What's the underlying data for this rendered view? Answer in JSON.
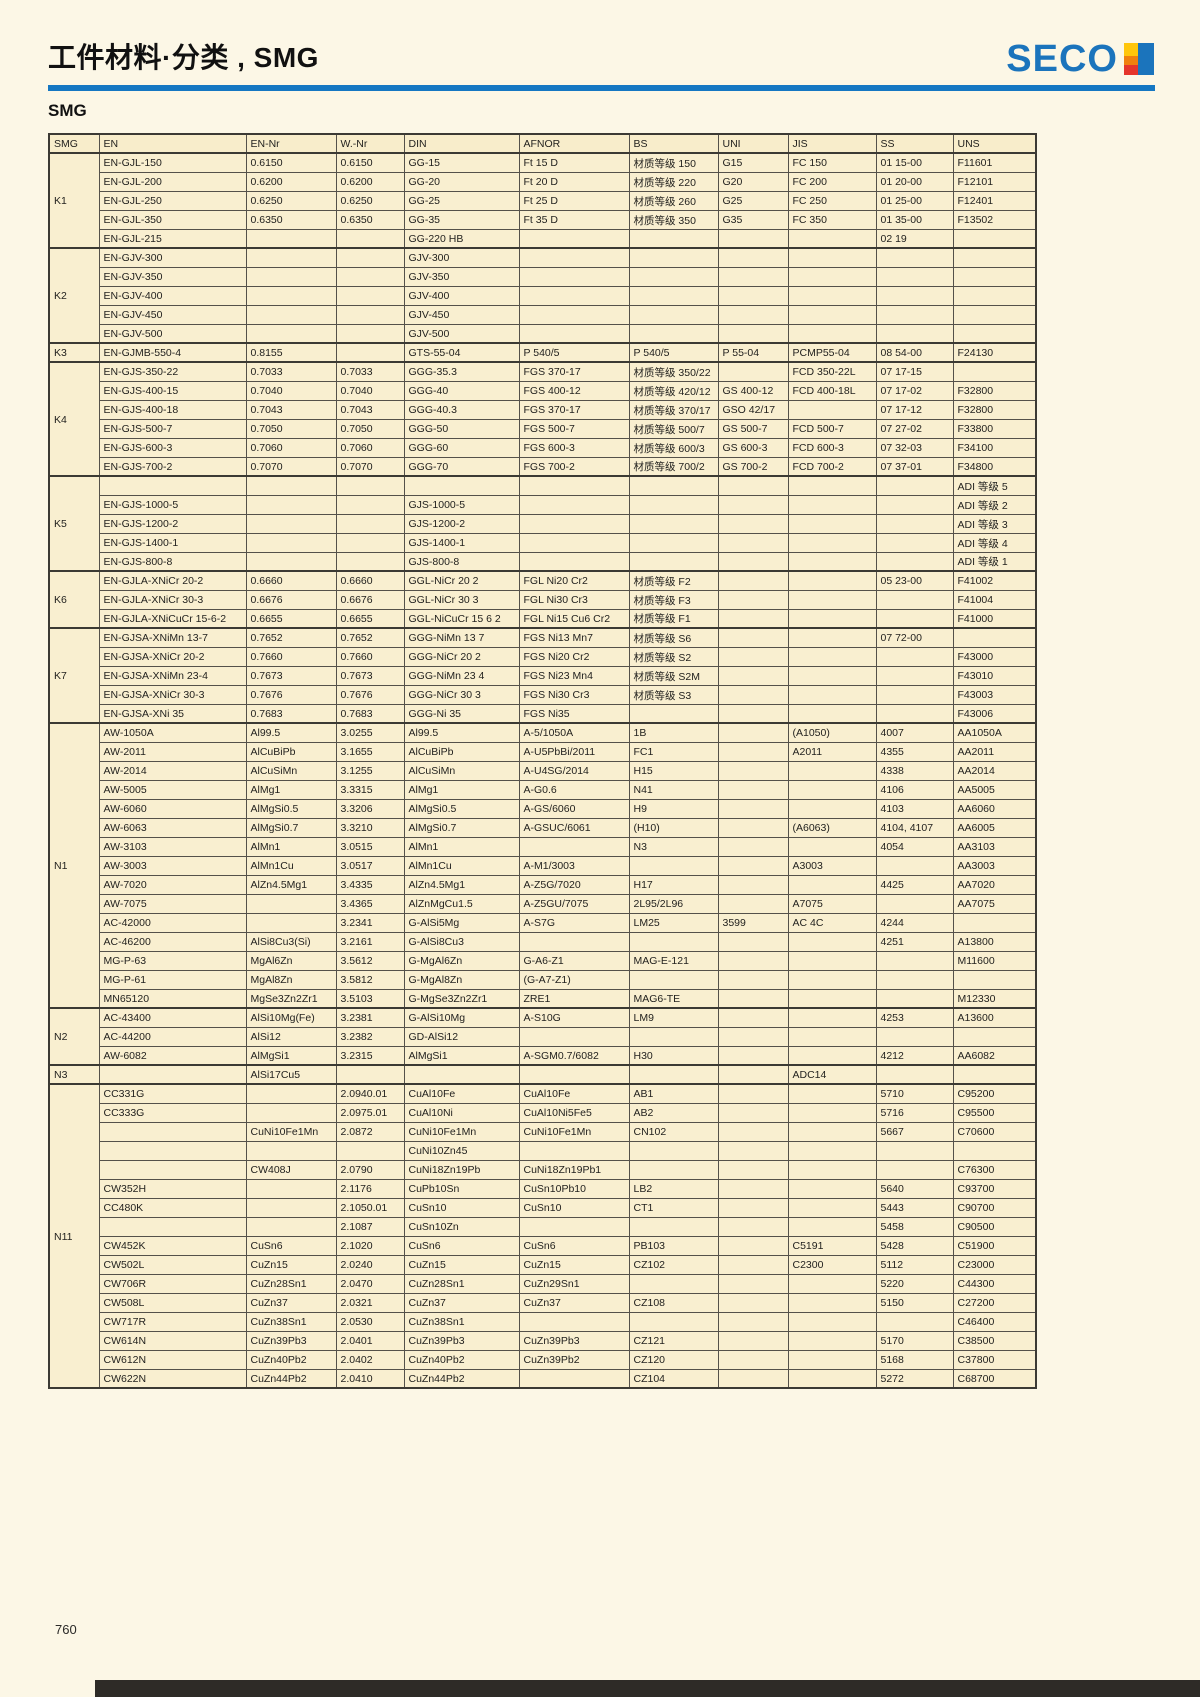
{
  "page": {
    "title": "工件材料·分类 , SMG",
    "logo_text": "SECO",
    "section_label": "SMG",
    "page_number": "760"
  },
  "colors": {
    "accent_blue": "#1577c2",
    "logo_blue": "#1b74bc",
    "group_orange": "#ee7c4e",
    "group_green": "#d8e7d6",
    "cell_cream": "#f9efd0"
  },
  "table": {
    "columns": [
      "SMG",
      "EN",
      "EN-Nr",
      "W.-Nr",
      "DIN",
      "AFNOR",
      "BS",
      "UNI",
      "JIS",
      "SS",
      "UNS"
    ],
    "groups": [
      {
        "label": "K1",
        "type": "k",
        "rows": [
          [
            "EN-GJL-150",
            "0.6150",
            "0.6150",
            "GG-15",
            "Ft 15 D",
            "材质等级 150",
            "G15",
            "FC 150",
            "01 15-00",
            "F11601"
          ],
          [
            "EN-GJL-200",
            "0.6200",
            "0.6200",
            "GG-20",
            "Ft 20 D",
            "材质等级 220",
            "G20",
            "FC 200",
            "01 20-00",
            "F12101"
          ],
          [
            "EN-GJL-250",
            "0.6250",
            "0.6250",
            "GG-25",
            "Ft 25 D",
            "材质等级 260",
            "G25",
            "FC 250",
            "01 25-00",
            "F12401"
          ],
          [
            "EN-GJL-350",
            "0.6350",
            "0.6350",
            "GG-35",
            "Ft 35 D",
            "材质等级 350",
            "G35",
            "FC 350",
            "01 35-00",
            "F13502"
          ],
          [
            "EN-GJL-215",
            "",
            "",
            "GG-220 HB",
            "",
            "",
            "",
            "",
            "02 19",
            ""
          ]
        ]
      },
      {
        "label": "K2",
        "type": "k",
        "rows": [
          [
            "EN-GJV-300",
            "",
            "",
            "GJV-300",
            "",
            "",
            "",
            "",
            "",
            ""
          ],
          [
            "EN-GJV-350",
            "",
            "",
            "GJV-350",
            "",
            "",
            "",
            "",
            "",
            ""
          ],
          [
            "EN-GJV-400",
            "",
            "",
            "GJV-400",
            "",
            "",
            "",
            "",
            "",
            ""
          ],
          [
            "EN-GJV-450",
            "",
            "",
            "GJV-450",
            "",
            "",
            "",
            "",
            "",
            ""
          ],
          [
            "EN-GJV-500",
            "",
            "",
            "GJV-500",
            "",
            "",
            "",
            "",
            "",
            ""
          ]
        ]
      },
      {
        "label": "K3",
        "type": "k",
        "rows": [
          [
            "EN-GJMB-550-4",
            "0.8155",
            "",
            "GTS-55-04",
            "P 540/5",
            "P 540/5",
            "P 55-04",
            "PCMP55-04",
            "08 54-00",
            "F24130"
          ]
        ]
      },
      {
        "label": "K4",
        "type": "k",
        "rows": [
          [
            "EN-GJS-350-22",
            "0.7033",
            "0.7033",
            "GGG-35.3",
            "FGS 370-17",
            "材质等级 350/22",
            "",
            "FCD 350-22L",
            "07 17-15",
            ""
          ],
          [
            "EN-GJS-400-15",
            "0.7040",
            "0.7040",
            "GGG-40",
            "FGS 400-12",
            "材质等级 420/12",
            "GS 400-12",
            "FCD 400-18L",
            "07 17-02",
            "F32800"
          ],
          [
            "EN-GJS-400-18",
            "0.7043",
            "0.7043",
            "GGG-40.3",
            "FGS 370-17",
            "材质等级 370/17",
            "GSO 42/17",
            "",
            "07 17-12",
            "F32800"
          ],
          [
            "EN-GJS-500-7",
            "0.7050",
            "0.7050",
            "GGG-50",
            "FGS 500-7",
            "材质等级 500/7",
            "GS 500-7",
            "FCD 500-7",
            "07 27-02",
            "F33800"
          ],
          [
            "EN-GJS-600-3",
            "0.7060",
            "0.7060",
            "GGG-60",
            "FGS 600-3",
            "材质等级 600/3",
            "GS 600-3",
            "FCD 600-3",
            "07 32-03",
            "F34100"
          ],
          [
            "EN-GJS-700-2",
            "0.7070",
            "0.7070",
            "GGG-70",
            "FGS 700-2",
            "材质等级 700/2",
            "GS 700-2",
            "FCD 700-2",
            "07 37-01",
            "F34800"
          ]
        ]
      },
      {
        "label": "K5",
        "type": "k",
        "rows": [
          [
            "",
            "",
            "",
            "",
            "",
            "",
            "",
            "",
            "",
            "ADI 等级 5"
          ],
          [
            "EN-GJS-1000-5",
            "",
            "",
            "GJS-1000-5",
            "",
            "",
            "",
            "",
            "",
            "ADI 等级 2"
          ],
          [
            "EN-GJS-1200-2",
            "",
            "",
            "GJS-1200-2",
            "",
            "",
            "",
            "",
            "",
            "ADI 等级 3"
          ],
          [
            "EN-GJS-1400-1",
            "",
            "",
            "GJS-1400-1",
            "",
            "",
            "",
            "",
            "",
            "ADI 等级 4"
          ],
          [
            "EN-GJS-800-8",
            "",
            "",
            "GJS-800-8",
            "",
            "",
            "",
            "",
            "",
            "ADI 等级 1"
          ]
        ]
      },
      {
        "label": "K6",
        "type": "k",
        "rows": [
          [
            "EN-GJLA-XNiCr 20-2",
            "0.6660",
            "0.6660",
            "GGL-NiCr 20 2",
            "FGL Ni20 Cr2",
            "材质等级 F2",
            "",
            "",
            "05 23-00",
            "F41002"
          ],
          [
            "EN-GJLA-XNiCr 30-3",
            "0.6676",
            "0.6676",
            "GGL-NiCr 30 3",
            "FGL Ni30 Cr3",
            "材质等级 F3",
            "",
            "",
            "",
            "F41004"
          ],
          [
            "EN-GJLA-XNiCuCr 15-6-2",
            "0.6655",
            "0.6655",
            "GGL-NiCuCr 15 6 2",
            "FGL Ni15 Cu6 Cr2",
            "材质等级 F1",
            "",
            "",
            "",
            "F41000"
          ]
        ]
      },
      {
        "label": "K7",
        "type": "k",
        "rows": [
          [
            "EN-GJSA-XNiMn 13-7",
            "0.7652",
            "0.7652",
            "GGG-NiMn 13 7",
            "FGS Ni13 Mn7",
            "材质等级 S6",
            "",
            "",
            "07 72-00",
            ""
          ],
          [
            "EN-GJSA-XNiCr 20-2",
            "0.7660",
            "0.7660",
            "GGG-NiCr 20 2",
            "FGS Ni20 Cr2",
            "材质等级 S2",
            "",
            "",
            "",
            "F43000"
          ],
          [
            "EN-GJSA-XNiMn 23-4",
            "0.7673",
            "0.7673",
            "GGG-NiMn 23 4",
            "FGS Ni23 Mn4",
            "材质等级 S2M",
            "",
            "",
            "",
            "F43010"
          ],
          [
            "EN-GJSA-XNiCr 30-3",
            "0.7676",
            "0.7676",
            "GGG-NiCr 30 3",
            "FGS Ni30 Cr3",
            "材质等级 S3",
            "",
            "",
            "",
            "F43003"
          ],
          [
            "EN-GJSA-XNi 35",
            "0.7683",
            "0.7683",
            "GGG-Ni 35",
            "FGS Ni35",
            "",
            "",
            "",
            "",
            "F43006"
          ]
        ]
      },
      {
        "label": "N1",
        "type": "n",
        "rows": [
          [
            "AW-1050A",
            "Al99.5",
            "3.0255",
            "Al99.5",
            "A-5/1050A",
            "1B",
            "",
            "(A1050)",
            "4007",
            "AA1050A"
          ],
          [
            "AW-2011",
            "AlCuBiPb",
            "3.1655",
            "AlCuBiPb",
            "A-U5PbBi/2011",
            "FC1",
            "",
            "A2011",
            "4355",
            "AA2011"
          ],
          [
            "AW-2014",
            "AlCuSiMn",
            "3.1255",
            "AlCuSiMn",
            "A-U4SG/2014",
            "H15",
            "",
            "",
            "4338",
            "AA2014"
          ],
          [
            "AW-5005",
            "AlMg1",
            "3.3315",
            "AlMg1",
            "A-G0.6",
            "N41",
            "",
            "",
            "4106",
            "AA5005"
          ],
          [
            "AW-6060",
            "AlMgSi0.5",
            "3.3206",
            "AlMgSi0.5",
            "A-GS/6060",
            "H9",
            "",
            "",
            "4103",
            "AA6060"
          ],
          [
            "AW-6063",
            "AlMgSi0.7",
            "3.3210",
            "AlMgSi0.7",
            "A-GSUC/6061",
            "(H10)",
            "",
            "(A6063)",
            "4104, 4107",
            "AA6005"
          ],
          [
            "AW-3103",
            "AlMn1",
            "3.0515",
            "AlMn1",
            "",
            "N3",
            "",
            "",
            "4054",
            "AA3103"
          ],
          [
            "AW-3003",
            "AlMn1Cu",
            "3.0517",
            "AlMn1Cu",
            "A-M1/3003",
            "",
            "",
            "A3003",
            "",
            "AA3003"
          ],
          [
            "AW-7020",
            "AlZn4.5Mg1",
            "3.4335",
            "AlZn4.5Mg1",
            "A-Z5G/7020",
            "H17",
            "",
            "",
            "4425",
            "AA7020"
          ],
          [
            "AW-7075",
            "",
            "3.4365",
            "AlZnMgCu1.5",
            "A-Z5GU/7075",
            "2L95/2L96",
            "",
            "A7075",
            "",
            "AA7075"
          ],
          [
            "AC-42000",
            "",
            "3.2341",
            "G-AlSi5Mg",
            "A-S7G",
            "LM25",
            "3599",
            "AC 4C",
            "4244",
            ""
          ],
          [
            "AC-46200",
            "AlSi8Cu3(Si)",
            "3.2161",
            "G-AlSi8Cu3",
            "",
            "",
            "",
            "",
            "4251",
            "A13800"
          ],
          [
            "MG-P-63",
            "MgAl6Zn",
            "3.5612",
            "G-MgAl6Zn",
            "G-A6-Z1",
            "MAG-E-121",
            "",
            "",
            "",
            "M11600"
          ],
          [
            "MG-P-61",
            "MgAl8Zn",
            "3.5812",
            "G-MgAl8Zn",
            "(G-A7-Z1)",
            "",
            "",
            "",
            "",
            ""
          ],
          [
            "MN65120",
            "MgSe3Zn2Zr1",
            "3.5103",
            "G-MgSe3Zn2Zr1",
            "ZRE1",
            "MAG6-TE",
            "",
            "",
            "",
            "M12330"
          ]
        ]
      },
      {
        "label": "N2",
        "type": "n",
        "rows": [
          [
            "AC-43400",
            "AlSi10Mg(Fe)",
            "3.2381",
            "G-AlSi10Mg",
            "A-S10G",
            "LM9",
            "",
            "",
            "4253",
            "A13600"
          ],
          [
            "AC-44200",
            "AlSi12",
            "3.2382",
            "GD-AlSi12",
            "",
            "",
            "",
            "",
            "",
            ""
          ],
          [
            "AW-6082",
            "AlMgSi1",
            "3.2315",
            "AlMgSi1",
            "A-SGM0.7/6082",
            "H30",
            "",
            "",
            "4212",
            "AA6082"
          ]
        ]
      },
      {
        "label": "N3",
        "type": "n",
        "rows": [
          [
            "",
            "AlSi17Cu5",
            "",
            "",
            "",
            "",
            "",
            "ADC14",
            "",
            ""
          ]
        ]
      },
      {
        "label": "N11",
        "type": "n",
        "rows": [
          [
            "CC331G",
            "",
            "2.0940.01",
            "CuAl10Fe",
            "CuAl10Fe",
            "AB1",
            "",
            "",
            "5710",
            "C95200"
          ],
          [
            "CC333G",
            "",
            "2.0975.01",
            "CuAl10Ni",
            "CuAl10Ni5Fe5",
            "AB2",
            "",
            "",
            "5716",
            "C95500"
          ],
          [
            "",
            "CuNi10Fe1Mn",
            "2.0872",
            "CuNi10Fe1Mn",
            "CuNi10Fe1Mn",
            "CN102",
            "",
            "",
            "5667",
            "C70600"
          ],
          [
            "",
            "",
            "",
            "CuNi10Zn45",
            "",
            "",
            "",
            "",
            "",
            ""
          ],
          [
            "",
            "CW408J",
            "2.0790",
            "CuNi18Zn19Pb",
            "CuNi18Zn19Pb1",
            "",
            "",
            "",
            "",
            "C76300"
          ],
          [
            "CW352H",
            "",
            "2.1176",
            "CuPb10Sn",
            "CuSn10Pb10",
            "LB2",
            "",
            "",
            "5640",
            "C93700"
          ],
          [
            "CC480K",
            "",
            "2.1050.01",
            "CuSn10",
            "CuSn10",
            "CT1",
            "",
            "",
            "5443",
            "C90700"
          ],
          [
            "",
            "",
            "2.1087",
            "CuSn10Zn",
            "",
            "",
            "",
            "",
            "5458",
            "C90500"
          ],
          [
            "CW452K",
            "CuSn6",
            "2.1020",
            "CuSn6",
            "CuSn6",
            "PB103",
            "",
            "C5191",
            "5428",
            "C51900"
          ],
          [
            "CW502L",
            "CuZn15",
            "2.0240",
            "CuZn15",
            "CuZn15",
            "CZ102",
            "",
            "C2300",
            "5112",
            "C23000"
          ],
          [
            "CW706R",
            "CuZn28Sn1",
            "2.0470",
            "CuZn28Sn1",
            "CuZn29Sn1",
            "",
            "",
            "",
            "5220",
            "C44300"
          ],
          [
            "CW508L",
            "CuZn37",
            "2.0321",
            "CuZn37",
            "CuZn37",
            "CZ108",
            "",
            "",
            "5150",
            "C27200"
          ],
          [
            "CW717R",
            "CuZn38Sn1",
            "2.0530",
            "CuZn38Sn1",
            "",
            "",
            "",
            "",
            "",
            "C46400"
          ],
          [
            "CW614N",
            "CuZn39Pb3",
            "2.0401",
            "CuZn39Pb3",
            "CuZn39Pb3",
            "CZ121",
            "",
            "",
            "5170",
            "C38500"
          ],
          [
            "CW612N",
            "CuZn40Pb2",
            "2.0402",
            "CuZn40Pb2",
            "CuZn39Pb2",
            "CZ120",
            "",
            "",
            "5168",
            "C37800"
          ],
          [
            "CW622N",
            "CuZn44Pb2",
            "2.0410",
            "CuZn44Pb2",
            "",
            "CZ104",
            "",
            "",
            "5272",
            "C68700"
          ]
        ]
      }
    ]
  }
}
